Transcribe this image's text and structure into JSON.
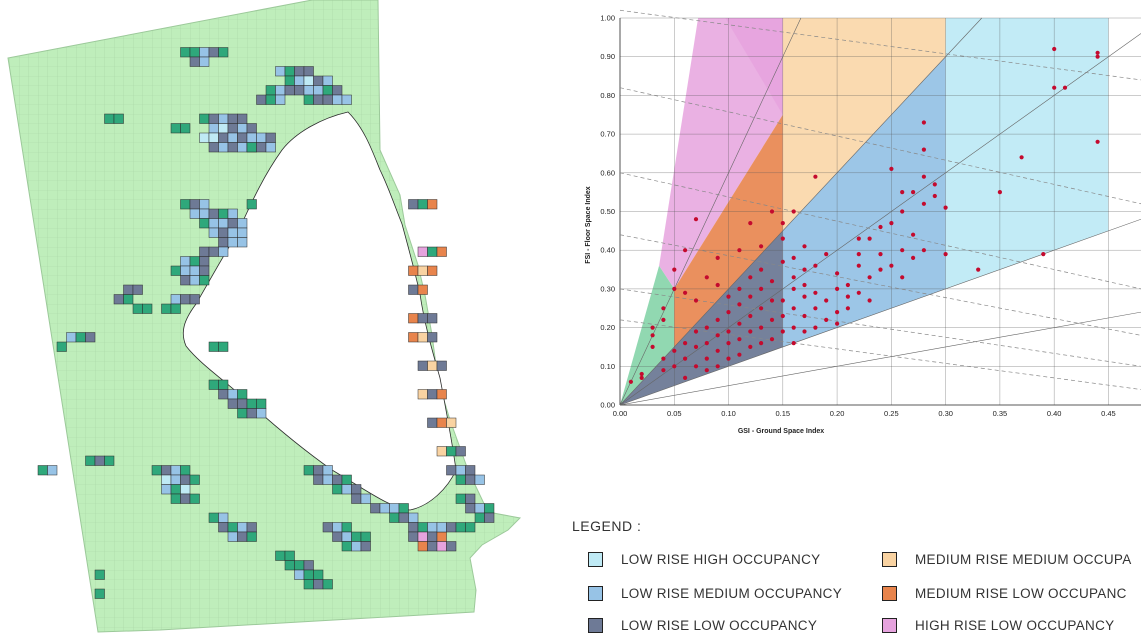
{
  "colors": {
    "background_land": "#bfeebb",
    "map_grid": "#a9d6a6",
    "water": "#ffffff",
    "green_cells": "#2fa87b",
    "low_rise_high_occupancy": "#bfeaf5",
    "low_rise_medium_occupancy": "#97c3e6",
    "low_rise_low_occupancy": "#6e7a96",
    "medium_rise_medium_occupancy": "#f9d3a2",
    "medium_rise_low_occupancy": "#e8844c",
    "high_rise_low_occupancy": "#e6a3de",
    "open_space": "#7ed1a3",
    "dots": "#c40a2e"
  },
  "legend": {
    "title": "LEGEND :",
    "items": [
      {
        "label": "LOW RISE HIGH OCCUPANCY",
        "color": "#bfeaf5"
      },
      {
        "label": "MEDIUM RISE MEDIUM OCCUPA",
        "color": "#f9d3a2"
      },
      {
        "label": "LOW RISE MEDIUM OCCUPANCY",
        "color": "#97c3e6"
      },
      {
        "label": "MEDIUM RISE LOW OCCUPANC",
        "color": "#e8844c"
      },
      {
        "label": "LOW RISE LOW OCCUPANCY",
        "color": "#6e7a96"
      },
      {
        "label": "HIGH RISE LOW OCCUPANCY",
        "color": "#e6a3de"
      }
    ]
  },
  "chart_data": {
    "type": "scatter",
    "title": "",
    "xlabel": "GSI - Ground Space Index",
    "ylabel": "FSI - Floor Space Index",
    "xlim": [
      0,
      0.48
    ],
    "ylim": [
      0,
      1.0
    ],
    "x_ticks": [
      "0.00",
      "0.05",
      "0.10",
      "0.15",
      "0.20",
      "0.25",
      "0.30",
      "0.35",
      "0.40",
      "0.45"
    ],
    "y_ticks": [
      "0.00",
      "0.10",
      "0.20",
      "0.30",
      "0.40",
      "0.50",
      "0.60",
      "0.70",
      "0.80",
      "0.90",
      "1.00"
    ],
    "grid": true,
    "legend": "none",
    "series": [
      {
        "points": [
          [
            0.4,
            0.92
          ],
          [
            0.44,
            0.9
          ],
          [
            0.44,
            0.91
          ],
          [
            0.41,
            0.82
          ],
          [
            0.4,
            0.82
          ],
          [
            0.44,
            0.68
          ],
          [
            0.37,
            0.64
          ],
          [
            0.35,
            0.55
          ],
          [
            0.33,
            0.35
          ],
          [
            0.39,
            0.39
          ],
          [
            0.28,
            0.73
          ],
          [
            0.28,
            0.66
          ],
          [
            0.28,
            0.59
          ],
          [
            0.29,
            0.57
          ],
          [
            0.29,
            0.54
          ],
          [
            0.3,
            0.51
          ],
          [
            0.28,
            0.52
          ],
          [
            0.27,
            0.55
          ],
          [
            0.26,
            0.55
          ],
          [
            0.25,
            0.61
          ],
          [
            0.26,
            0.5
          ],
          [
            0.25,
            0.47
          ],
          [
            0.24,
            0.46
          ],
          [
            0.23,
            0.43
          ],
          [
            0.22,
            0.43
          ],
          [
            0.27,
            0.44
          ],
          [
            0.24,
            0.39
          ],
          [
            0.26,
            0.4
          ],
          [
            0.28,
            0.4
          ],
          [
            0.3,
            0.39
          ],
          [
            0.22,
            0.36
          ],
          [
            0.23,
            0.33
          ],
          [
            0.21,
            0.31
          ],
          [
            0.22,
            0.29
          ],
          [
            0.2,
            0.3
          ],
          [
            0.23,
            0.27
          ],
          [
            0.21,
            0.25
          ],
          [
            0.19,
            0.39
          ],
          [
            0.18,
            0.36
          ],
          [
            0.17,
            0.41
          ],
          [
            0.16,
            0.38
          ],
          [
            0.17,
            0.31
          ],
          [
            0.18,
            0.29
          ],
          [
            0.16,
            0.3
          ],
          [
            0.15,
            0.27
          ],
          [
            0.2,
            0.21
          ],
          [
            0.18,
            0.59
          ],
          [
            0.16,
            0.5
          ],
          [
            0.15,
            0.47
          ],
          [
            0.14,
            0.5
          ],
          [
            0.12,
            0.47
          ],
          [
            0.13,
            0.41
          ],
          [
            0.11,
            0.4
          ],
          [
            0.09,
            0.38
          ],
          [
            0.08,
            0.33
          ],
          [
            0.09,
            0.31
          ],
          [
            0.07,
            0.27
          ],
          [
            0.06,
            0.29
          ],
          [
            0.05,
            0.3
          ],
          [
            0.04,
            0.25
          ],
          [
            0.04,
            0.22
          ],
          [
            0.03,
            0.18
          ],
          [
            0.07,
            0.48
          ],
          [
            0.06,
            0.4
          ],
          [
            0.05,
            0.35
          ],
          [
            0.03,
            0.2
          ],
          [
            0.03,
            0.15
          ],
          [
            0.02,
            0.08
          ],
          [
            0.01,
            0.06
          ],
          [
            0.02,
            0.07
          ],
          [
            0.06,
            0.07
          ],
          [
            0.05,
            0.1
          ],
          [
            0.04,
            0.09
          ],
          [
            0.04,
            0.12
          ],
          [
            0.05,
            0.14
          ],
          [
            0.06,
            0.12
          ],
          [
            0.07,
            0.15
          ],
          [
            0.07,
            0.1
          ],
          [
            0.08,
            0.16
          ],
          [
            0.08,
            0.12
          ],
          [
            0.08,
            0.2
          ],
          [
            0.09,
            0.14
          ],
          [
            0.09,
            0.18
          ],
          [
            0.09,
            0.22
          ],
          [
            0.1,
            0.12
          ],
          [
            0.1,
            0.16
          ],
          [
            0.1,
            0.19
          ],
          [
            0.1,
            0.24
          ],
          [
            0.11,
            0.13
          ],
          [
            0.11,
            0.17
          ],
          [
            0.11,
            0.21
          ],
          [
            0.11,
            0.26
          ],
          [
            0.12,
            0.15
          ],
          [
            0.12,
            0.19
          ],
          [
            0.12,
            0.23
          ],
          [
            0.12,
            0.28
          ],
          [
            0.13,
            0.16
          ],
          [
            0.13,
            0.2
          ],
          [
            0.13,
            0.25
          ],
          [
            0.13,
            0.3
          ],
          [
            0.14,
            0.17
          ],
          [
            0.14,
            0.22
          ],
          [
            0.14,
            0.27
          ],
          [
            0.14,
            0.32
          ],
          [
            0.15,
            0.19
          ],
          [
            0.15,
            0.23
          ],
          [
            0.15,
            0.43
          ],
          [
            0.16,
            0.16
          ],
          [
            0.16,
            0.2
          ],
          [
            0.16,
            0.25
          ],
          [
            0.17,
            0.19
          ],
          [
            0.17,
            0.23
          ],
          [
            0.17,
            0.28
          ],
          [
            0.18,
            0.2
          ],
          [
            0.18,
            0.25
          ],
          [
            0.19,
            0.22
          ],
          [
            0.19,
            0.27
          ],
          [
            0.2,
            0.24
          ],
          [
            0.2,
            0.34
          ],
          [
            0.21,
            0.28
          ],
          [
            0.22,
            0.39
          ],
          [
            0.24,
            0.35
          ],
          [
            0.25,
            0.36
          ],
          [
            0.26,
            0.33
          ],
          [
            0.27,
            0.38
          ],
          [
            0.06,
            0.16
          ],
          [
            0.07,
            0.19
          ],
          [
            0.08,
            0.09
          ],
          [
            0.09,
            0.1
          ],
          [
            0.1,
            0.28
          ],
          [
            0.11,
            0.3
          ],
          [
            0.12,
            0.33
          ],
          [
            0.13,
            0.35
          ],
          [
            0.15,
            0.37
          ],
          [
            0.16,
            0.33
          ],
          [
            0.17,
            0.35
          ]
        ]
      }
    ]
  }
}
